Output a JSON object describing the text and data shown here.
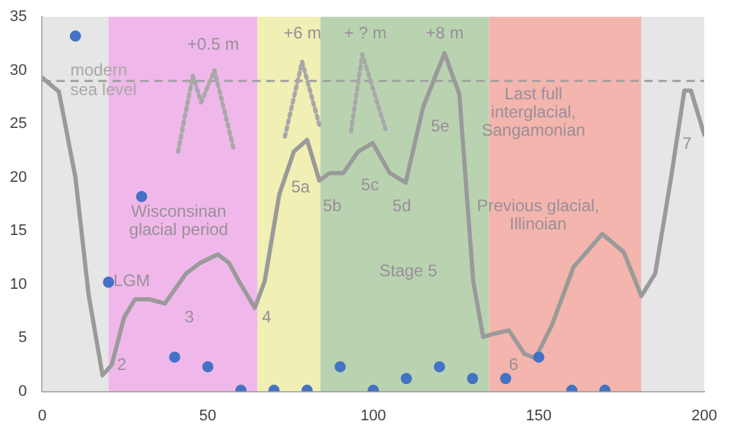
{
  "chart_data": {
    "type": "scatter",
    "xlim": [
      0,
      200
    ],
    "xticks": [
      0,
      50,
      100,
      150,
      200
    ],
    "ylim": [
      0,
      35
    ],
    "yticks": [
      0,
      5,
      10,
      15,
      20,
      25,
      30,
      35
    ],
    "grid": false,
    "legend": false,
    "bands": [
      {
        "axis": "x",
        "from": 0,
        "to": 20,
        "color": "#e6e6e6"
      },
      {
        "axis": "x",
        "from": 20,
        "to": 65,
        "color": "#f0b8ea"
      },
      {
        "axis": "x",
        "from": 65,
        "to": 84,
        "color": "#f0efb4"
      },
      {
        "axis": "x",
        "from": 84,
        "to": 135,
        "color": "#b9d3b1"
      },
      {
        "axis": "x",
        "from": 135,
        "to": 181,
        "color": "#f3b5ad"
      },
      {
        "axis": "x",
        "from": 181,
        "to": 200,
        "color": "#e6e6e6"
      }
    ],
    "ref_lines": [
      {
        "axis": "y",
        "value": 29,
        "label": "modern\nsea level",
        "color": "#a0a0a0",
        "line_style": "dashed"
      }
    ],
    "series": [
      {
        "type": "line",
        "color": "#9a9a9a",
        "line_style": "solid",
        "marker": "none",
        "x": [
          0,
          5,
          10,
          14,
          18.2,
          21,
          24.7,
          28,
          32.5,
          37,
          43.4,
          47.7,
          53,
          56.4,
          59.4,
          64.2,
          67.2,
          71.6,
          76,
          80,
          83.7,
          86.8,
          91,
          95.4,
          99.8,
          105,
          109.8,
          115,
          121.5,
          126,
          130.2,
          133.2,
          136.7,
          141,
          145.7,
          149,
          154,
          160.5,
          169.2,
          175.7,
          181,
          185.2,
          190,
          194,
          196,
          200
        ],
        "values": [
          29.3,
          28,
          20,
          9,
          1.5,
          2.5,
          6.9,
          8.6,
          8.6,
          8.2,
          11,
          12,
          12.8,
          12,
          10.3,
          7.8,
          10.3,
          18.4,
          22.4,
          23.5,
          19.7,
          20.4,
          20.4,
          22.4,
          23.2,
          20.4,
          19.5,
          26.5,
          31.6,
          27.8,
          10.3,
          5.1,
          5.4,
          5.7,
          3.5,
          3.1,
          6.2,
          11.6,
          14.7,
          13,
          8.9,
          11,
          20,
          28.1,
          28.1,
          24
        ]
      },
      {
        "type": "line",
        "color": "#a8a8a8",
        "line_style": "dotted",
        "marker": "none",
        "x": [
          41,
          45.5,
          48,
          52,
          57.7
        ],
        "values": [
          22.4,
          29.5,
          27,
          30,
          22.8
        ]
      },
      {
        "type": "line",
        "color": "#a8a8a8",
        "line_style": "dotted",
        "marker": "none",
        "x": [
          73.3,
          78.5,
          83.7
        ],
        "values": [
          23.8,
          30.8,
          24.9
        ]
      },
      {
        "type": "line",
        "color": "#a8a8a8",
        "line_style": "dotted",
        "marker": "none",
        "x": [
          93.3,
          96.7,
          103.7
        ],
        "values": [
          24.3,
          31.5,
          24.5
        ]
      },
      {
        "color": "#4472c4",
        "marker": "circle",
        "x": [
          10,
          30,
          20,
          40,
          50,
          60,
          70,
          80,
          90,
          100,
          110,
          120,
          130,
          140,
          150,
          160,
          170
        ],
        "values": [
          33.2,
          18.2,
          10.2,
          3.2,
          2.3,
          0.1,
          0.1,
          0.1,
          2.3,
          0.1,
          1.2,
          2.3,
          1.2,
          1.2,
          3.2,
          0.1,
          0.1
        ]
      }
    ],
    "annotations": [
      "+0.5 m",
      "+6 m",
      "+ ? m",
      "+8 m",
      "Last full\ninterglacial,\nSangamonian",
      "5e",
      "5a",
      "5b",
      "5c",
      "5d",
      "Wisconsinan\nglacial period",
      "LGM",
      "2",
      "3",
      "4",
      "6",
      "7",
      "Stage 5",
      "Previous glacial,\nIllinoian"
    ]
  }
}
